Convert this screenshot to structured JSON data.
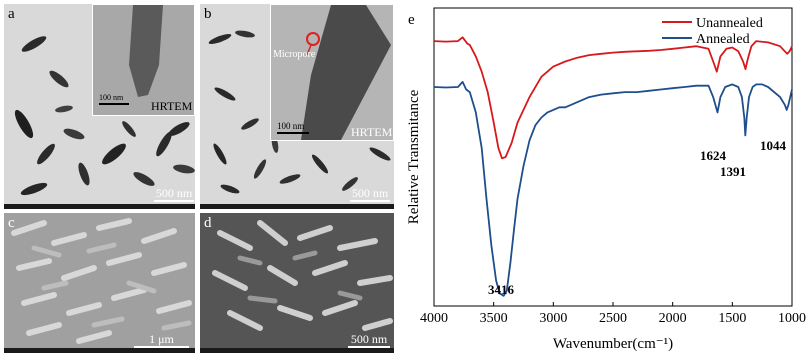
{
  "panels": {
    "a": {
      "label": "a",
      "inset_tag": "HRTEM",
      "inset_scale": "100 nm",
      "scale": "500 nm"
    },
    "b": {
      "label": "b",
      "inset_tag": "HRTEM",
      "inset_scale": "100 nm",
      "scale": "500 nm",
      "annotation": "Micropore"
    },
    "c": {
      "label": "c",
      "scale": "1 μm"
    },
    "d": {
      "label": "d",
      "scale": "500 nm"
    }
  },
  "chart_data": {
    "type": "line",
    "panel_label": "e",
    "xlabel": "Wavenumber(cm⁻¹)",
    "ylabel": "Relative Transmitance",
    "xlim": [
      4000,
      1000
    ],
    "x_ticks": [
      "4000",
      "3500",
      "3000",
      "2500",
      "2000",
      "1500",
      "1000"
    ],
    "legend_position": "top-right",
    "series": [
      {
        "name": "Unannealed",
        "color": "#d7191c",
        "x": [
          4000,
          3900,
          3800,
          3760,
          3720,
          3700,
          3650,
          3600,
          3550,
          3500,
          3460,
          3430,
          3400,
          3350,
          3300,
          3200,
          3100,
          3000,
          2900,
          2800,
          2700,
          2600,
          2500,
          2400,
          2300,
          2200,
          2100,
          2000,
          1900,
          1800,
          1700,
          1660,
          1630,
          1600,
          1550,
          1500,
          1450,
          1410,
          1390,
          1370,
          1340,
          1300,
          1200,
          1100,
          1060,
          1040,
          1020,
          1000
        ],
        "y": [
          0.92,
          0.918,
          0.92,
          0.935,
          0.91,
          0.905,
          0.86,
          0.8,
          0.72,
          0.6,
          0.5,
          0.46,
          0.465,
          0.52,
          0.6,
          0.7,
          0.78,
          0.82,
          0.84,
          0.855,
          0.865,
          0.87,
          0.875,
          0.878,
          0.88,
          0.882,
          0.885,
          0.89,
          0.895,
          0.9,
          0.89,
          0.84,
          0.8,
          0.86,
          0.89,
          0.895,
          0.88,
          0.84,
          0.81,
          0.85,
          0.9,
          0.92,
          0.915,
          0.9,
          0.88,
          0.87,
          0.88,
          0.9
        ]
      },
      {
        "name": "Annealed",
        "color": "#1f4e8c",
        "x": [
          4000,
          3900,
          3800,
          3760,
          3730,
          3700,
          3650,
          3600,
          3560,
          3520,
          3480,
          3450,
          3416,
          3390,
          3360,
          3330,
          3300,
          3250,
          3200,
          3150,
          3100,
          3050,
          3000,
          2950,
          2900,
          2850,
          2800,
          2700,
          2600,
          2500,
          2400,
          2300,
          2200,
          2100,
          2000,
          1900,
          1800,
          1700,
          1660,
          1624,
          1600,
          1560,
          1500,
          1450,
          1420,
          1400,
          1391,
          1380,
          1360,
          1330,
          1300,
          1250,
          1200,
          1100,
          1060,
          1044,
          1030,
          1000
        ],
        "y": [
          0.74,
          0.738,
          0.74,
          0.76,
          0.73,
          0.72,
          0.64,
          0.5,
          0.3,
          0.12,
          -0.02,
          -0.07,
          -0.08,
          -0.06,
          0.05,
          0.18,
          0.3,
          0.43,
          0.53,
          0.59,
          0.62,
          0.64,
          0.65,
          0.66,
          0.66,
          0.67,
          0.68,
          0.7,
          0.71,
          0.715,
          0.72,
          0.72,
          0.725,
          0.73,
          0.735,
          0.74,
          0.745,
          0.745,
          0.7,
          0.64,
          0.7,
          0.74,
          0.75,
          0.74,
          0.7,
          0.62,
          0.55,
          0.62,
          0.7,
          0.74,
          0.75,
          0.75,
          0.74,
          0.7,
          0.67,
          0.65,
          0.67,
          0.73
        ]
      }
    ],
    "annotations": [
      "3416",
      "1624",
      "1391",
      "1044"
    ]
  }
}
